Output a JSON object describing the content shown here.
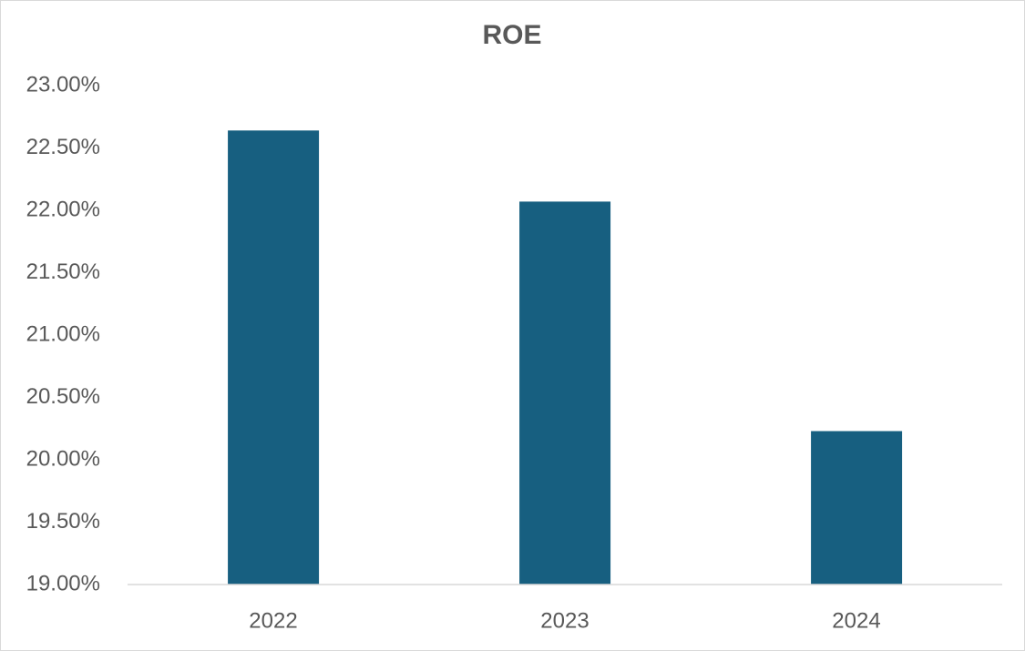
{
  "chart_data": {
    "type": "bar",
    "title": "ROE",
    "categories": [
      "2022",
      "2023",
      "2024"
    ],
    "values": [
      22.64,
      22.07,
      20.23
    ],
    "color": "#175f80",
    "ylim": [
      19,
      23
    ],
    "yticks": [
      {
        "value": 19,
        "label": "19.00%"
      },
      {
        "value": 19.5,
        "label": "19.50%"
      },
      {
        "value": 20,
        "label": "20.00%"
      },
      {
        "value": 20.5,
        "label": "20.50%"
      },
      {
        "value": 21,
        "label": "21.00%"
      },
      {
        "value": 21.5,
        "label": "21.50%"
      },
      {
        "value": 22,
        "label": "22.00%"
      },
      {
        "value": 22.5,
        "label": "22.50%"
      },
      {
        "value": 23,
        "label": "23.00%"
      }
    ],
    "grid": false
  }
}
